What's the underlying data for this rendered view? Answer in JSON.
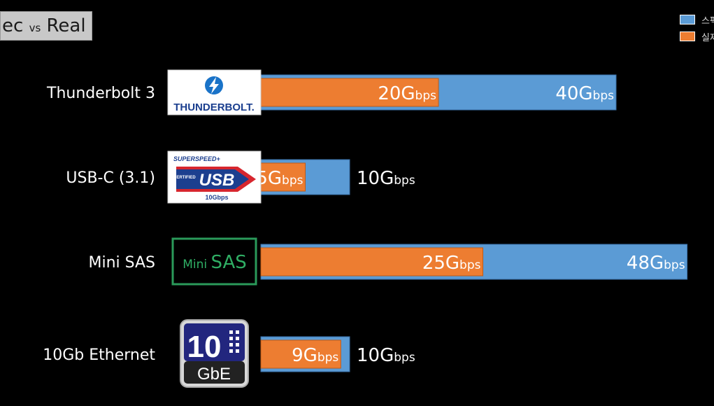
{
  "title": {
    "main_left": "ec",
    "vs": "vs",
    "main_right": "Real"
  },
  "legend": [
    {
      "label": "스펙",
      "color": "#5b9bd5"
    },
    {
      "label": "실제",
      "color": "#ed7d31"
    }
  ],
  "colors": {
    "spec": "#5b9bd5",
    "real": "#ed7d31",
    "spec_border": "#3a6fa8",
    "real_border": "#c05a15"
  },
  "chart_data": {
    "type": "bar",
    "orientation": "horizontal",
    "unit_big": "G",
    "unit_small": "bps",
    "categories": [
      "Thunderbolt 3",
      "USB-C (3.1)",
      "Mini SAS",
      "10Gb Ethernet"
    ],
    "series": [
      {
        "name": "스펙",
        "values": [
          40,
          10,
          48,
          10
        ]
      },
      {
        "name": "실제",
        "values": [
          20,
          5,
          25,
          9
        ]
      }
    ],
    "logos": {
      "thunderbolt": "THUNDERBOLT.",
      "usb_top": "SUPERSPEED+",
      "usb_certified": "CERTIFIED",
      "usb_main": "USB",
      "usb_speed": "10Gbps",
      "minisas_small": "Mini",
      "minisas_big": "SAS",
      "gbe_number": "10",
      "gbe_text": "GbE"
    }
  }
}
